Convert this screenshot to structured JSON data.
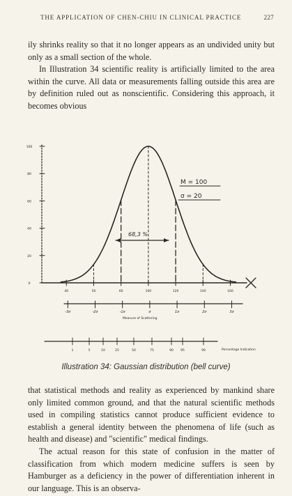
{
  "header": {
    "title": "THE APPLICATION OF CHEN-CHIU IN CLINICAL PRACTICE",
    "page_number": "227"
  },
  "paragraphs_top": [
    "ily shrinks reality so that it no longer appears as an undivided unity but only as a small section of the whole.",
    "In Illustration 34 scientific reality is artificially limited to the area within the curve. All data or measurements falling outside this area are by definition ruled out as nonscientific. Considering this approach, it becomes obvious"
  ],
  "figure": {
    "caption": "Illustration 34: Gaussian distribution (bell curve)",
    "y_tick_labels": [
      "100",
      "80",
      "60",
      "40",
      "20",
      "0"
    ],
    "x_tick_labels": [
      "40",
      "50",
      "60",
      "100",
      "120",
      "140",
      "160"
    ],
    "mean_label": "M = 100",
    "sigma_label": "σ = 20",
    "percent_label": "68,3 %",
    "sigma_scale_labels": [
      "-3σ",
      "-2σ",
      "-1σ",
      "σ",
      "1σ",
      "2σ",
      "3σ"
    ],
    "sigma_scale_caption": "Measure of Scattering",
    "percentile_labels": [
      "1",
      "5",
      "10",
      "25",
      "50",
      "75",
      "90",
      "95",
      "99"
    ],
    "percentile_caption": "Percentage Indication"
  },
  "chart_data": {
    "type": "line",
    "title": "",
    "xlabel": "",
    "ylabel": "",
    "mean": 100,
    "sigma": 20,
    "x": [
      40,
      50,
      60,
      70,
      80,
      90,
      100,
      110,
      120,
      130,
      140,
      150,
      160
    ],
    "y": [
      1,
      4,
      14,
      32,
      61,
      88,
      100,
      88,
      61,
      32,
      14,
      4,
      1
    ],
    "xlim": [
      40,
      160
    ],
    "ylim": [
      0,
      100
    ],
    "shaded_interval": [
      80,
      120
    ],
    "shaded_interval_label": "68,3 %"
  },
  "paragraphs_bottom": [
    "that statistical methods and reality as experienced by mankind share only limited common ground, and that the natural scientific methods used in compiling statistics cannot produce sufficient evidence to establish a general identity between the phenomena of life (such as health and disease) and \"scientific\" medical findings.",
    "The actual reason for this state of confusion in the matter of classification from which modern medicine suffers is seen by Hamburger as a deficiency in the power of differentiation inherent in our language. This is an observa-"
  ]
}
